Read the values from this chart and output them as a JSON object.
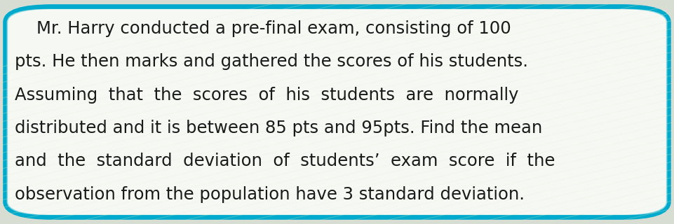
{
  "background_color": "#f0f4ee",
  "border_color": "#00aacc",
  "text_color": "#1a1a1a",
  "font_size": 17.5,
  "text_lines": [
    "    Mr. Harry conducted a pre-final exam, consisting of 100",
    "pts. He then marks and gathered the scores of his students.",
    "Assuming  that  the  scores  of  his  students  are  normally",
    "distributed and it is between 85 pts and 95pts. Find the mean",
    "and  the  standard  deviation  of  students’  exam  score  if  the",
    "observation from the population have 3 standard deviation."
  ],
  "fig_width": 9.61,
  "fig_height": 3.2,
  "dpi": 100
}
